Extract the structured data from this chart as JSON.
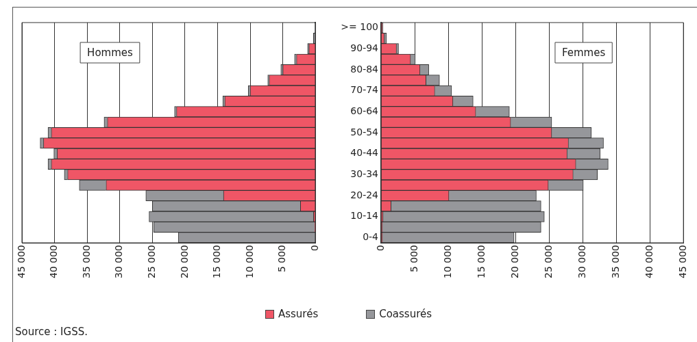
{
  "chart_data": [
    {
      "type": "bar",
      "orientation": "horizontal",
      "stacked": true,
      "title": "Hommes",
      "tick_labels": "x",
      "grid": "x",
      "legend": "bottom",
      "categories": [
        null,
        null,
        null,
        null,
        null,
        null,
        null,
        null,
        null,
        null,
        null,
        null,
        null,
        null,
        null,
        null,
        null,
        null,
        null,
        null,
        null
      ],
      "xlim": [
        45000,
        0
      ],
      "xticks": [
        {
          "value": 45000,
          "label": "45 000"
        },
        {
          "value": 40000,
          "label": "40 000"
        },
        {
          "value": 35000,
          "label": "35 000"
        },
        {
          "value": 30000,
          "label": "30 000"
        },
        {
          "value": 25000,
          "label": "25 000"
        },
        {
          "value": 20000,
          "label": "20 000"
        },
        {
          "value": 15000,
          "label": "15 000"
        },
        {
          "value": 10000,
          "label": "10 000"
        },
        {
          "value": 5000,
          "label": "5 000"
        },
        0
      ],
      "series": [
        {
          "name": "Assurés",
          "color": "#ef5666",
          "values": [
            0,
            null,
            1000,
            2900,
            5000,
            7100,
            10000,
            13900,
            21300,
            31900,
            40500,
            41700,
            39600,
            40500,
            38000,
            32100,
            14100,
            2300,
            300,
            100,
            0
          ]
        },
        {
          "name": "Coassurés",
          "color": "#96979b",
          "values": [
            100,
            300,
            200,
            300,
            300,
            200,
            300,
            300,
            300,
            500,
            500,
            500,
            500,
            500,
            500,
            4100,
            11900,
            22700,
            25200,
            24700,
            21000
          ]
        }
      ],
      "annotations": [
        "Source : IGSS."
      ]
    },
    {
      "type": "bar",
      "orientation": "horizontal",
      "stacked": true,
      "title": "Femmes",
      "grid": "x",
      "categories": [
        ">= 100",
        null,
        "90-94",
        null,
        "80-84",
        null,
        "70-74",
        null,
        "60-64",
        null,
        "50-54",
        null,
        "40-44",
        null,
        "30-34",
        null,
        "20-24",
        null,
        "10-14",
        null,
        "0-4"
      ],
      "xlim": [
        0,
        45000
      ],
      "xticks": [
        0,
        {
          "value": 5000,
          "label": "5 000"
        },
        {
          "value": 10000,
          "label": "10 000"
        },
        {
          "value": 15000,
          "label": "15 000"
        },
        {
          "value": 20000,
          "label": "20 000"
        },
        {
          "value": 25000,
          "label": "25 000"
        },
        {
          "value": 30000,
          "label": "30 000"
        },
        {
          "value": 35000,
          "label": "35 000"
        },
        {
          "value": 40000,
          "label": "40 000"
        },
        {
          "value": 45000,
          "label": "45 000"
        }
      ],
      "series": [
        {
          "color": "#ef5666",
          "values": [
            200,
            500,
            2300,
            4400,
            5800,
            6700,
            8000,
            10700,
            14100,
            19300,
            25400,
            27900,
            27700,
            29000,
            28600,
            24900,
            10100,
            1500,
            300,
            200,
            200
          ]
        },
        {
          "color": "#96979b",
          "values": [
            100,
            300,
            300,
            700,
            1300,
            2000,
            2500,
            3000,
            5000,
            6100,
            5900,
            5200,
            4900,
            4800,
            3600,
            5200,
            13000,
            22300,
            24000,
            23600,
            19600
          ]
        }
      ]
    }
  ]
}
